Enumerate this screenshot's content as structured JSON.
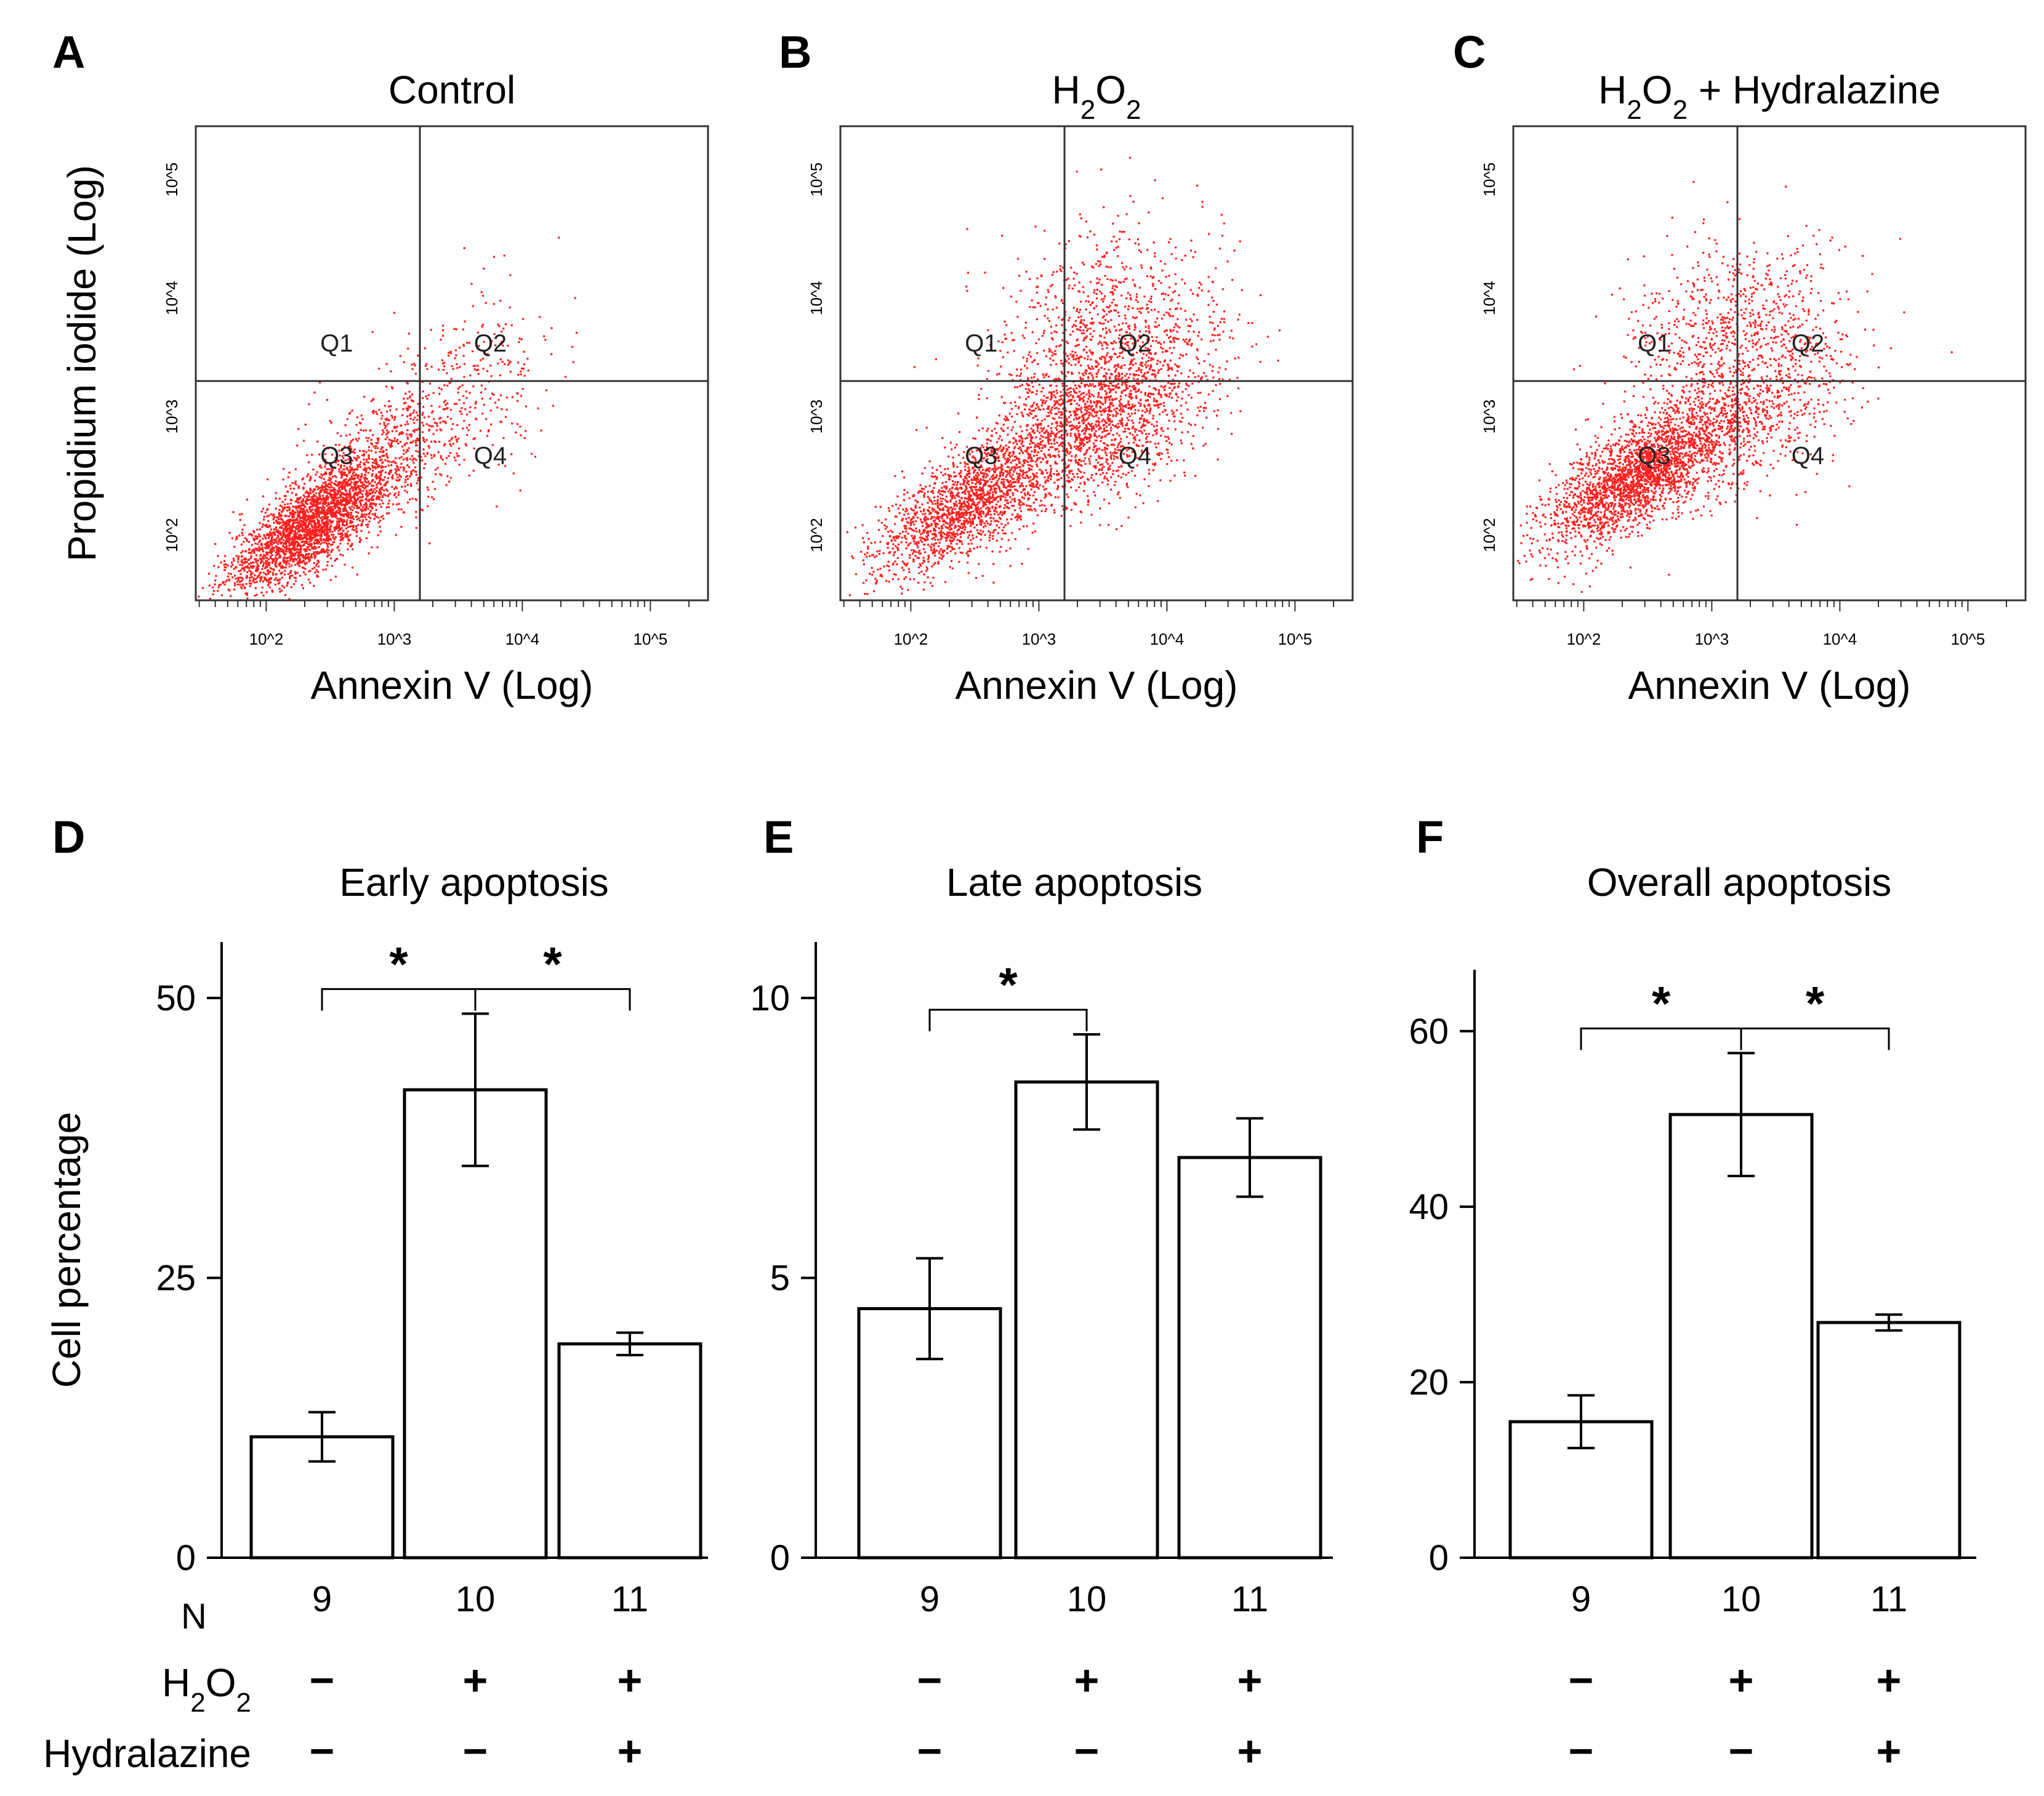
{
  "flow_panels": [
    {
      "id": "A",
      "title": "Control",
      "title_main": "",
      "title_sub": "",
      "title_rest": "",
      "xlabel": "Annexin V (Log)",
      "ylabel": "Propidium iodide (Log)",
      "x_ticks": [
        "10^2",
        "10^3",
        "10^4",
        "10^5"
      ],
      "y_ticks": [
        "10^2",
        "10^3",
        "10^4",
        "10^5"
      ],
      "quadrants": [
        "Q1",
        "Q2",
        "Q3",
        "Q4"
      ],
      "gate_x_log": 3.2,
      "gate_y_log": 3.3,
      "clusters": [
        {
          "mx": 2.35,
          "my": 2.1,
          "sx": 0.32,
          "sy": 0.28,
          "rho": 0.75,
          "n": 2600
        },
        {
          "mx": 2.95,
          "my": 2.7,
          "sx": 0.35,
          "sy": 0.3,
          "rho": 0.5,
          "n": 600
        },
        {
          "mx": 3.6,
          "my": 3.3,
          "sx": 0.35,
          "sy": 0.4,
          "rho": 0.3,
          "n": 250
        }
      ],
      "color": "#ff2020"
    },
    {
      "id": "B",
      "title": "",
      "title_main": "H",
      "title_sub": "2",
      "title_rest": "O",
      "title_sub2": "2",
      "title_tail": "",
      "xlabel": "Annexin V (Log)",
      "ylabel": "",
      "x_ticks": [
        "10^2",
        "10^3",
        "10^4",
        "10^5"
      ],
      "y_ticks": [
        "10^2",
        "10^3",
        "10^4",
        "10^5"
      ],
      "quadrants": [
        "Q1",
        "Q2",
        "Q3",
        "Q4"
      ],
      "gate_x_log": 3.2,
      "gate_y_log": 3.3,
      "clusters": [
        {
          "mx": 2.4,
          "my": 2.25,
          "sx": 0.35,
          "sy": 0.3,
          "rho": 0.7,
          "n": 1700
        },
        {
          "mx": 3.45,
          "my": 3.0,
          "sx": 0.42,
          "sy": 0.38,
          "rho": 0.45,
          "n": 1900
        },
        {
          "mx": 3.5,
          "my": 3.8,
          "sx": 0.45,
          "sy": 0.45,
          "rho": 0.2,
          "n": 700
        }
      ],
      "color": "#ff2020"
    },
    {
      "id": "C",
      "title": "",
      "title_main": "H",
      "title_sub": "2",
      "title_rest": "O",
      "title_sub2": "2",
      "title_tail": " + Hydralazine",
      "xlabel": "Annexin V (Log)",
      "ylabel": "",
      "x_ticks": [
        "10^2",
        "10^3",
        "10^4",
        "10^5"
      ],
      "y_ticks": [
        "10^2",
        "10^3",
        "10^4",
        "10^5"
      ],
      "quadrants": [
        "Q1",
        "Q2",
        "Q3",
        "Q4"
      ],
      "gate_x_log": 3.2,
      "gate_y_log": 3.3,
      "clusters": [
        {
          "mx": 2.4,
          "my": 2.5,
          "sx": 0.35,
          "sy": 0.3,
          "rho": 0.7,
          "n": 2300
        },
        {
          "mx": 3.2,
          "my": 3.0,
          "sx": 0.4,
          "sy": 0.35,
          "rho": 0.4,
          "n": 900
        },
        {
          "mx": 3.2,
          "my": 3.8,
          "sx": 0.45,
          "sy": 0.35,
          "rho": 0.1,
          "n": 700
        }
      ],
      "color": "#ff2020"
    }
  ],
  "chart_data": [
    {
      "id": "D",
      "type": "bar",
      "title": "Early apoptosis",
      "ylabel": "Cell percentage",
      "categories": [
        "9",
        "10",
        "11"
      ],
      "values": [
        10.8,
        41.8,
        19.1
      ],
      "errors": [
        2.2,
        6.8,
        1.0
      ],
      "ylim": [
        0,
        55
      ],
      "yticks": [
        0,
        25,
        50
      ],
      "significance": [
        {
          "from": 0,
          "to": 1,
          "label": "*"
        },
        {
          "from": 1,
          "to": 2,
          "label": "*"
        }
      ]
    },
    {
      "id": "E",
      "type": "bar",
      "title": "Late apoptosis",
      "ylabel": "",
      "categories": [
        "9",
        "10",
        "11"
      ],
      "values": [
        4.45,
        8.5,
        7.15
      ],
      "errors": [
        0.9,
        0.85,
        0.7
      ],
      "ylim": [
        0,
        11
      ],
      "yticks": [
        0,
        5,
        10
      ],
      "significance": [
        {
          "from": 0,
          "to": 1,
          "label": "*"
        }
      ]
    },
    {
      "id": "F",
      "type": "bar",
      "title": "Overall apoptosis",
      "ylabel": "",
      "categories": [
        "9",
        "10",
        "11"
      ],
      "values": [
        15.5,
        50.5,
        26.8
      ],
      "errors": [
        3.0,
        7.0,
        0.9
      ],
      "ylim": [
        0,
        67
      ],
      "yticks": [
        0,
        20,
        40,
        60
      ],
      "significance": [
        {
          "from": 0,
          "to": 1,
          "label": "*"
        },
        {
          "from": 1,
          "to": 2,
          "label": "*"
        }
      ]
    }
  ],
  "n_label": "N",
  "treatment_rows": [
    {
      "label_main": "H",
      "label_sub": "2",
      "label_mid": "O",
      "label_sub2": "2",
      "label": "",
      "signs": [
        "−",
        "+",
        "+"
      ]
    },
    {
      "label_main": "",
      "label_sub": "",
      "label_mid": "",
      "label_sub2": "",
      "label": "Hydralazine",
      "signs": [
        "−",
        "−",
        "+"
      ]
    }
  ]
}
